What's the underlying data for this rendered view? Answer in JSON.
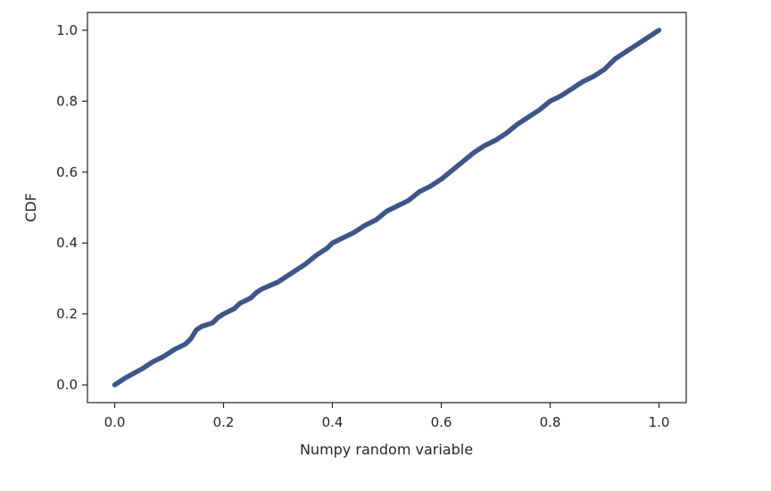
{
  "chart_data": {
    "type": "line",
    "title": "",
    "xlabel": "Numpy random variable",
    "ylabel": "CDF",
    "xlim": [
      -0.05,
      1.05
    ],
    "ylim": [
      -0.05,
      1.05
    ],
    "xticks": [
      "0.0",
      "0.2",
      "0.4",
      "0.6",
      "0.8",
      "1.0"
    ],
    "yticks": [
      "0.0",
      "0.2",
      "0.4",
      "0.6",
      "0.8",
      "1.0"
    ],
    "grid": false,
    "series": [
      {
        "color": "#3f5587",
        "x": [
          0.0,
          0.02,
          0.05,
          0.07,
          0.09,
          0.11,
          0.13,
          0.14,
          0.15,
          0.16,
          0.18,
          0.19,
          0.2,
          0.22,
          0.23,
          0.25,
          0.26,
          0.27,
          0.3,
          0.32,
          0.35,
          0.37,
          0.39,
          0.4,
          0.42,
          0.44,
          0.46,
          0.48,
          0.5,
          0.52,
          0.54,
          0.56,
          0.58,
          0.6,
          0.62,
          0.64,
          0.66,
          0.68,
          0.7,
          0.72,
          0.74,
          0.76,
          0.78,
          0.8,
          0.82,
          0.84,
          0.86,
          0.88,
          0.9,
          0.92,
          0.94,
          0.96,
          0.98,
          1.0
        ],
        "y": [
          0.0,
          0.02,
          0.045,
          0.065,
          0.08,
          0.1,
          0.115,
          0.13,
          0.155,
          0.165,
          0.175,
          0.19,
          0.2,
          0.215,
          0.23,
          0.245,
          0.26,
          0.27,
          0.29,
          0.31,
          0.34,
          0.365,
          0.385,
          0.4,
          0.415,
          0.43,
          0.45,
          0.465,
          0.49,
          0.505,
          0.52,
          0.545,
          0.56,
          0.58,
          0.605,
          0.63,
          0.655,
          0.675,
          0.69,
          0.71,
          0.735,
          0.755,
          0.775,
          0.8,
          0.815,
          0.835,
          0.855,
          0.87,
          0.89,
          0.92,
          0.94,
          0.96,
          0.98,
          1.0
        ]
      }
    ]
  }
}
